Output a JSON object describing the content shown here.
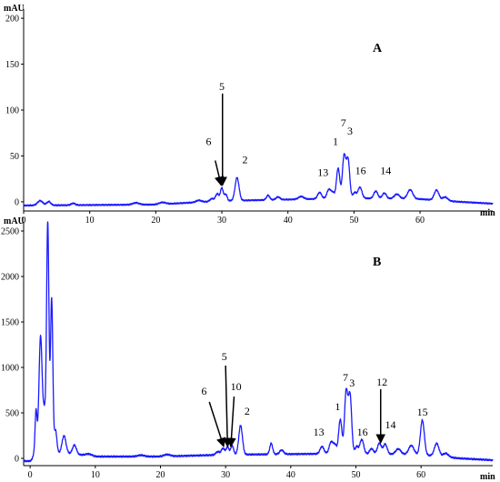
{
  "chart_data": [
    {
      "type": "line",
      "panel_label": "A",
      "xlabel": "min",
      "ylabel": "mAU",
      "xlim": [
        0,
        71
      ],
      "ylim": [
        -10,
        210
      ],
      "x_ticks": [
        0,
        10,
        20,
        30,
        40,
        50,
        60
      ],
      "y_ticks": [
        0,
        50,
        100,
        150,
        200
      ],
      "color": "#1a1aff",
      "peaks": [
        {
          "x": 0,
          "h": 0,
          "w": 0
        },
        {
          "x": 2.5,
          "h": 5,
          "w": 0.4
        },
        {
          "x": 3.8,
          "h": 4,
          "w": 0.3
        },
        {
          "x": 7.5,
          "h": 2,
          "w": 0.3
        },
        {
          "x": 17,
          "h": 2,
          "w": 0.5
        },
        {
          "x": 21,
          "h": 2,
          "w": 0.5
        },
        {
          "x": 26.5,
          "h": 2,
          "w": 0.4
        },
        {
          "x": 28.5,
          "h": 3,
          "w": 0.3
        },
        {
          "x": 29.3,
          "h": 8,
          "w": 0.25
        },
        {
          "x": 30.0,
          "h": 14,
          "w": 0.22
        },
        {
          "x": 30.6,
          "h": 7,
          "w": 0.2
        },
        {
          "x": 32.3,
          "h": 25,
          "w": 0.3
        },
        {
          "x": 37,
          "h": 5,
          "w": 0.25
        },
        {
          "x": 38.5,
          "h": 3,
          "w": 0.3
        },
        {
          "x": 42,
          "h": 3,
          "w": 0.4
        },
        {
          "x": 44.8,
          "h": 7,
          "w": 0.3
        },
        {
          "x": 46.2,
          "h": 10,
          "w": 0.3
        },
        {
          "x": 46.8,
          "h": 6,
          "w": 0.25
        },
        {
          "x": 47.6,
          "h": 33,
          "w": 0.25
        },
        {
          "x": 48.5,
          "h": 46,
          "w": 0.25
        },
        {
          "x": 49.1,
          "h": 42,
          "w": 0.25
        },
        {
          "x": 50.1,
          "h": 6,
          "w": 0.25
        },
        {
          "x": 50.9,
          "h": 12,
          "w": 0.3
        },
        {
          "x": 53.3,
          "h": 8,
          "w": 0.3
        },
        {
          "x": 54.6,
          "h": 6,
          "w": 0.3
        },
        {
          "x": 56.5,
          "h": 5,
          "w": 0.4
        },
        {
          "x": 58.5,
          "h": 10,
          "w": 0.4
        },
        {
          "x": 62.5,
          "h": 11,
          "w": 0.35
        },
        {
          "x": 63.8,
          "h": 4,
          "w": 0.4
        }
      ],
      "baseline": [
        [
          0,
          -4
        ],
        [
          20,
          -3
        ],
        [
          30,
          1
        ],
        [
          50,
          4
        ],
        [
          60,
          3
        ],
        [
          66,
          0
        ],
        [
          71,
          -2
        ]
      ],
      "annotations": [
        {
          "label": "6",
          "x": 28.0,
          "y": 62
        },
        {
          "label": "5",
          "x": 30.0,
          "y": 122
        },
        {
          "label": "2",
          "x": 33.5,
          "y": 42
        },
        {
          "label": "13",
          "x": 45.3,
          "y": 28
        },
        {
          "label": "1",
          "x": 47.2,
          "y": 62
        },
        {
          "label": "7",
          "x": 48.4,
          "y": 82
        },
        {
          "label": "3",
          "x": 49.4,
          "y": 73
        },
        {
          "label": "16",
          "x": 51.0,
          "y": 30
        },
        {
          "label": "14",
          "x": 54.8,
          "y": 30
        }
      ],
      "arrows": [
        {
          "from": [
            29.0,
            45
          ],
          "to": [
            29.9,
            18
          ]
        },
        {
          "from": [
            30.1,
            118
          ],
          "to": [
            30.1,
            18
          ]
        }
      ]
    },
    {
      "type": "line",
      "panel_label": "B",
      "xlabel": "min",
      "ylabel": "mAU",
      "xlim": [
        -1,
        71
      ],
      "ylim": [
        -80,
        2600
      ],
      "x_ticks": [
        0,
        10,
        20,
        30,
        40,
        50,
        60
      ],
      "y_ticks": [
        0,
        500,
        1000,
        1500,
        2000,
        2500
      ],
      "color": "#1a1aff",
      "peaks": [
        {
          "x": 0.5,
          "h": 40,
          "w": 0.2
        },
        {
          "x": 0.9,
          "h": 480,
          "w": 0.15
        },
        {
          "x": 1.6,
          "h": 1300,
          "w": 0.25
        },
        {
          "x": 2.2,
          "h": 420,
          "w": 0.2
        },
        {
          "x": 2.7,
          "h": 2540,
          "w": 0.18
        },
        {
          "x": 3.3,
          "h": 1700,
          "w": 0.18
        },
        {
          "x": 3.9,
          "h": 250,
          "w": 0.2
        },
        {
          "x": 5.2,
          "h": 190,
          "w": 0.3
        },
        {
          "x": 6.8,
          "h": 100,
          "w": 0.3
        },
        {
          "x": 9,
          "h": 20,
          "w": 0.5
        },
        {
          "x": 17,
          "h": 15,
          "w": 0.5
        },
        {
          "x": 21,
          "h": 20,
          "w": 0.5
        },
        {
          "x": 28.8,
          "h": 35,
          "w": 0.3
        },
        {
          "x": 29.6,
          "h": 70,
          "w": 0.25
        },
        {
          "x": 30.3,
          "h": 85,
          "w": 0.22
        },
        {
          "x": 31.0,
          "h": 100,
          "w": 0.22
        },
        {
          "x": 32.3,
          "h": 320,
          "w": 0.28
        },
        {
          "x": 37,
          "h": 120,
          "w": 0.22
        },
        {
          "x": 38.6,
          "h": 45,
          "w": 0.3
        },
        {
          "x": 44.8,
          "h": 80,
          "w": 0.3
        },
        {
          "x": 46.2,
          "h": 130,
          "w": 0.3
        },
        {
          "x": 46.8,
          "h": 90,
          "w": 0.25
        },
        {
          "x": 47.6,
          "h": 380,
          "w": 0.25
        },
        {
          "x": 48.5,
          "h": 680,
          "w": 0.25
        },
        {
          "x": 49.1,
          "h": 640,
          "w": 0.25
        },
        {
          "x": 50.1,
          "h": 80,
          "w": 0.25
        },
        {
          "x": 50.9,
          "h": 160,
          "w": 0.3
        },
        {
          "x": 52.4,
          "h": 60,
          "w": 0.3
        },
        {
          "x": 53.6,
          "h": 120,
          "w": 0.3
        },
        {
          "x": 54.5,
          "h": 110,
          "w": 0.3
        },
        {
          "x": 56.5,
          "h": 60,
          "w": 0.4
        },
        {
          "x": 58.5,
          "h": 100,
          "w": 0.4
        },
        {
          "x": 60.2,
          "h": 380,
          "w": 0.3
        },
        {
          "x": 62.4,
          "h": 140,
          "w": 0.35
        },
        {
          "x": 63.8,
          "h": 40,
          "w": 0.4
        }
      ],
      "baseline": [
        [
          -1,
          -30
        ],
        [
          0.3,
          -30
        ],
        [
          1,
          40
        ],
        [
          5,
          60
        ],
        [
          10,
          20
        ],
        [
          20,
          20
        ],
        [
          30,
          40
        ],
        [
          45,
          50
        ],
        [
          55,
          45
        ],
        [
          60,
          40
        ],
        [
          66,
          0
        ],
        [
          71,
          -20
        ]
      ],
      "annotations": [
        {
          "label": "6",
          "x": 26.7,
          "y": 700
        },
        {
          "label": "5",
          "x": 29.8,
          "y": 1080
        },
        {
          "label": "10",
          "x": 31.6,
          "y": 750
        },
        {
          "label": "2",
          "x": 33.3,
          "y": 480
        },
        {
          "label": "13",
          "x": 44.3,
          "y": 250
        },
        {
          "label": "1",
          "x": 47.2,
          "y": 530
        },
        {
          "label": "7",
          "x": 48.4,
          "y": 850
        },
        {
          "label": "3",
          "x": 49.4,
          "y": 790
        },
        {
          "label": "16",
          "x": 51.0,
          "y": 250
        },
        {
          "label": "12",
          "x": 54.0,
          "y": 800
        },
        {
          "label": "14",
          "x": 55.3,
          "y": 330
        },
        {
          "label": "15",
          "x": 60.2,
          "y": 470
        }
      ],
      "arrows": [
        {
          "from": [
            27.5,
            620
          ],
          "to": [
            29.7,
            130
          ]
        },
        {
          "from": [
            30.0,
            1020
          ],
          "to": [
            30.3,
            130
          ]
        },
        {
          "from": [
            31.3,
            680
          ],
          "to": [
            30.8,
            130
          ]
        },
        {
          "from": [
            53.8,
            760
          ],
          "to": [
            53.8,
            170
          ]
        }
      ]
    }
  ]
}
